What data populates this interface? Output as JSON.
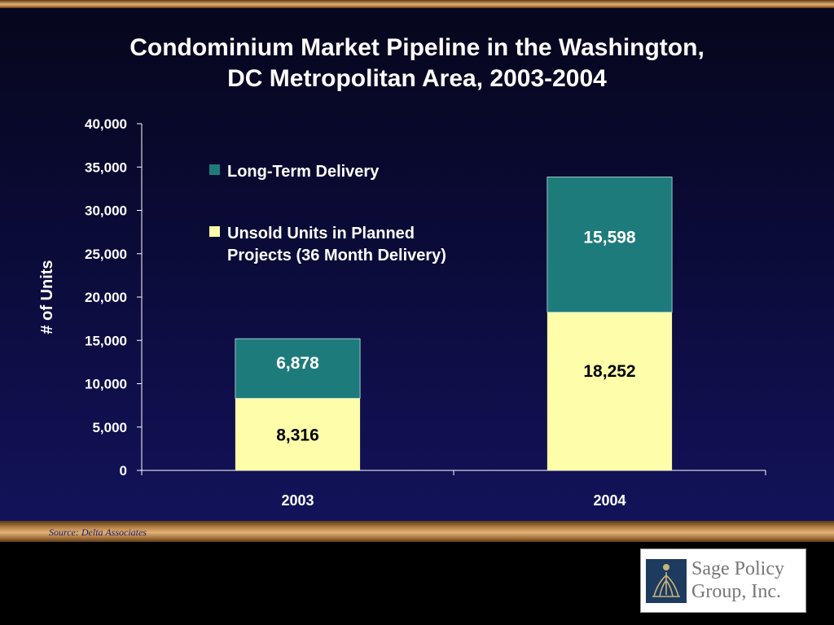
{
  "slide": {
    "title_line1": "Condominium Market Pipeline in the Washington,",
    "title_line2": "DC Metropolitan Area, 2003-2004",
    "source": "Source: Delta Associates",
    "logo": {
      "line1": "Sage Policy",
      "line2": "Group, Inc.",
      "icon": "sage-logo-icon"
    }
  },
  "colors": {
    "background": "#0a0a34",
    "long_term": "#1e7b7b",
    "unsold": "#fefdaa",
    "axis_text": "#ffffff"
  },
  "chart_data": {
    "type": "bar",
    "stacked": true,
    "title": "Condominium Market Pipeline in the Washington, DC Metropolitan Area, 2003-2004",
    "xlabel": "",
    "ylabel": "# of Units",
    "categories": [
      "2003",
      "2004"
    ],
    "series": [
      {
        "name": "Unsold Units in Planned Projects (36 Month Delivery)",
        "values": [
          8316,
          18252
        ],
        "labels": [
          "8,316",
          "18,252"
        ],
        "color": "#fefdaa"
      },
      {
        "name": "Long-Term Delivery",
        "values": [
          6878,
          15598
        ],
        "labels": [
          "6,878",
          "15,598"
        ],
        "color": "#1e7b7b"
      }
    ],
    "ylim": [
      0,
      40000
    ],
    "yticks": [
      0,
      5000,
      10000,
      15000,
      20000,
      25000,
      30000,
      35000,
      40000
    ],
    "ytick_labels": [
      "0",
      "5,000",
      "10,000",
      "15,000",
      "20,000",
      "25,000",
      "30,000",
      "35,000",
      "40,000"
    ],
    "grid": false,
    "legend": {
      "position": "top-left",
      "entries": [
        {
          "label_lines": [
            "Long-Term Delivery"
          ],
          "color": "#1e7b7b"
        },
        {
          "label_lines": [
            "Unsold Units in Planned",
            "Projects (36 Month Delivery)"
          ],
          "color": "#fefdaa"
        }
      ]
    }
  }
}
